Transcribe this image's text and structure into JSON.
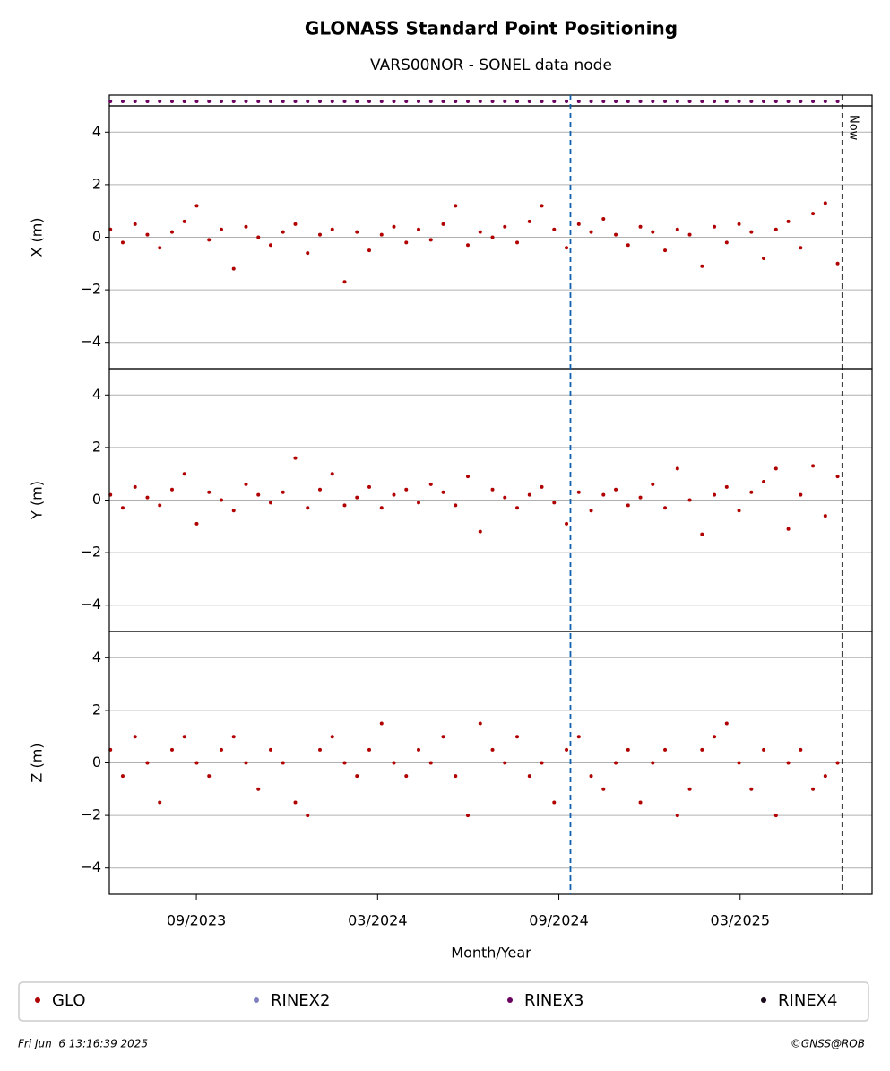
{
  "chart_data": {
    "type": "scatter",
    "title": "GLONASS Standard Point Positioning",
    "subtitle": "VARS00NOR - SONEL data node",
    "xlabel": "Month/Year",
    "xlim": [
      2023.427,
      2025.531
    ],
    "xticks": [
      {
        "value": 2023.667,
        "label": "09/2023"
      },
      {
        "value": 2024.167,
        "label": "03/2024"
      },
      {
        "value": 2024.667,
        "label": "09/2024"
      },
      {
        "value": 2025.167,
        "label": "03/2025"
      }
    ],
    "x": [
      2023.43,
      2023.464,
      2023.498,
      2023.532,
      2023.566,
      2023.6,
      2023.634,
      2023.668,
      2023.702,
      2023.736,
      2023.77,
      2023.804,
      2023.838,
      2023.872,
      2023.906,
      2023.94,
      2023.974,
      2024.008,
      2024.042,
      2024.076,
      2024.11,
      2024.144,
      2024.178,
      2024.212,
      2024.246,
      2024.28,
      2024.314,
      2024.348,
      2024.382,
      2024.416,
      2024.45,
      2024.484,
      2024.518,
      2024.552,
      2024.586,
      2024.62,
      2024.654,
      2024.688,
      2024.722,
      2024.756,
      2024.79,
      2024.824,
      2024.858,
      2024.892,
      2024.926,
      2024.96,
      2024.994,
      2025.028,
      2025.062,
      2025.096,
      2025.13,
      2025.164,
      2025.198,
      2025.232,
      2025.266,
      2025.3,
      2025.334,
      2025.368,
      2025.402,
      2025.436
    ],
    "series_name": "GLO",
    "color": "#b00000",
    "availability_color": "#6a0060",
    "panels": [
      {
        "ylabel": "X (m)",
        "ylim": [
          -5,
          5
        ],
        "yticks": [
          {
            "value": -4,
            "label": "−4"
          },
          {
            "value": -2,
            "label": "−2"
          },
          0,
          2,
          4
        ],
        "values": [
          0.3,
          -0.2,
          0.5,
          0.1,
          -0.4,
          0.2,
          0.6,
          1.2,
          -0.1,
          0.3,
          -1.2,
          0.4,
          0,
          -0.3,
          0.2,
          0.5,
          -0.6,
          0.1,
          0.3,
          -1.7,
          0.2,
          -0.5,
          0.1,
          0.4,
          -0.2,
          0.3,
          -0.1,
          0.5,
          1.2,
          -0.3,
          0.2,
          0,
          0.4,
          -0.2,
          0.6,
          1.2,
          0.3,
          -0.4,
          0.5,
          0.2,
          0.7,
          0.1,
          -0.3,
          0.4,
          0.2,
          -0.5,
          0.3,
          0.1,
          -1.1,
          0.4,
          -0.2,
          0.5,
          0.2,
          -0.8,
          0.3,
          0.6,
          -0.4,
          0.9,
          1.3,
          -1.0
        ]
      },
      {
        "ylabel": "Y (m)",
        "ylim": [
          -5,
          5
        ],
        "yticks": [
          {
            "value": -4,
            "label": "−4"
          },
          {
            "value": -2,
            "label": "−2"
          },
          0,
          2,
          4
        ],
        "values": [
          0.2,
          -0.3,
          0.5,
          0.1,
          -0.2,
          0.4,
          1.0,
          -0.9,
          0.3,
          0,
          -0.4,
          0.6,
          0.2,
          -0.1,
          0.3,
          1.6,
          -0.3,
          0.4,
          1.0,
          -0.2,
          0.1,
          0.5,
          -0.3,
          0.2,
          0.4,
          -0.1,
          0.6,
          0.3,
          -0.2,
          0.9,
          -1.2,
          0.4,
          0.1,
          -0.3,
          0.2,
          0.5,
          -0.1,
          -0.9,
          0.3,
          -0.4,
          0.2,
          0.4,
          -0.2,
          0.1,
          0.6,
          -0.3,
          1.2,
          0,
          -1.3,
          0.2,
          0.5,
          -0.4,
          0.3,
          0.7,
          1.2,
          -1.1,
          0.2,
          1.3,
          -0.6,
          0.9
        ]
      },
      {
        "ylabel": "Z (m)",
        "ylim": [
          -5,
          5
        ],
        "yticks": [
          {
            "value": -4,
            "label": "−4"
          },
          {
            "value": -2,
            "label": "−2"
          },
          0,
          2,
          4
        ],
        "values": [
          0.5,
          -0.5,
          1.0,
          0,
          -1.5,
          0.5,
          1.0,
          0,
          -0.5,
          0.5,
          1.0,
          0,
          -1.0,
          0.5,
          0,
          -1.5,
          -2.0,
          0.5,
          1.0,
          0,
          -0.5,
          0.5,
          1.5,
          0,
          -0.5,
          0.5,
          0,
          1.0,
          -0.5,
          -2.0,
          1.5,
          0.5,
          0,
          1.0,
          -0.5,
          0,
          -1.5,
          0.5,
          1.0,
          -0.5,
          -1.0,
          0,
          0.5,
          -1.5,
          0,
          0.5,
          -2.0,
          -1.0,
          0.5,
          1.0,
          1.5,
          0,
          -1.0,
          0.5,
          -2.0,
          0,
          0.5,
          -1.0,
          -0.5,
          0
        ]
      }
    ],
    "markers": [
      {
        "x": 2024.699,
        "color": "#1060b0"
      },
      {
        "x": 2025.449,
        "color": "#000000",
        "label": "Now"
      }
    ],
    "legend": [
      {
        "name": "GLO",
        "color": "#b00000"
      },
      {
        "name": "RINEX2",
        "color": "#8080c0"
      },
      {
        "name": "RINEX3",
        "color": "#6a0060"
      },
      {
        "name": "RINEX4",
        "color": "#1a0a1a"
      }
    ],
    "timestamp": "Fri Jun  6 13:16:39 2025",
    "copyright": "©GNSS@ROB"
  }
}
